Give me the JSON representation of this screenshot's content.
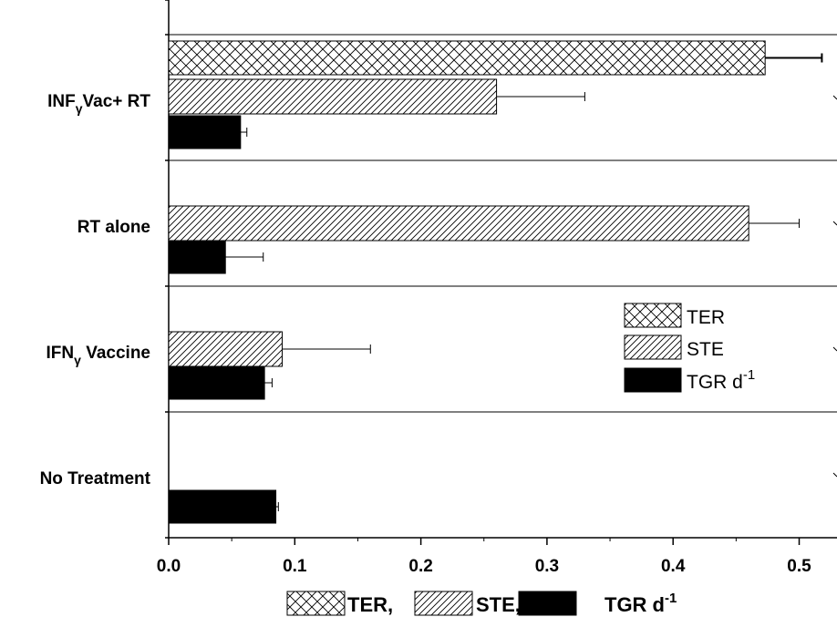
{
  "chart_data": {
    "type": "bar",
    "orientation": "horizontal",
    "categories": [
      {
        "base": "INF",
        "sub": "γ",
        "rest": "Vac+ RT"
      },
      {
        "base": "RT alone",
        "sub": "",
        "rest": ""
      },
      {
        "base": "IFN",
        "sub": "γ",
        "rest": " Vaccine"
      },
      {
        "base": "No Treatment",
        "sub": "",
        "rest": ""
      }
    ],
    "series": [
      {
        "name": "TER",
        "name_sup": "",
        "pattern": "crosshatch",
        "values": [
          0.473,
          null,
          null,
          null
        ],
        "errors": [
          0.045,
          null,
          null,
          null
        ]
      },
      {
        "name": "STE",
        "name_sup": "",
        "pattern": "diagonal",
        "values": [
          0.26,
          0.46,
          0.09,
          null
        ],
        "errors": [
          0.07,
          0.04,
          0.07,
          null
        ]
      },
      {
        "name": "TGR  d",
        "name_sup": "-1",
        "pattern": "solid",
        "values": [
          0.057,
          0.045,
          0.076,
          0.085
        ],
        "errors": [
          0.005,
          0.03,
          0.006,
          0.002
        ]
      }
    ],
    "xlim": [
      0.0,
      0.53
    ],
    "xticks": [
      "0.0",
      "0.1",
      "0.2",
      "0.3",
      "0.4",
      "0.5"
    ],
    "xtick_values": [
      0.0,
      0.1,
      0.2,
      0.3,
      0.4,
      0.5
    ],
    "xlabel_parts": [
      {
        "series": "TER",
        "text": "TER,"
      },
      {
        "series": "STE",
        "text": "STE,"
      },
      {
        "series": "TGR",
        "text": "TGR  d",
        "sup": "-1"
      }
    ],
    "legend_position": "right-middle",
    "grid": false,
    "colors": {
      "bar_fill": "#000000",
      "hatch_line": "#000000",
      "background": "#ffffff"
    }
  }
}
